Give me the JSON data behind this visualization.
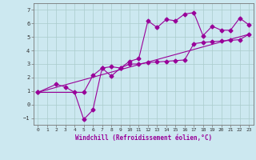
{
  "title": "",
  "xlabel": "Windchill (Refroidissement éolien,°C)",
  "bg_color": "#cce8f0",
  "line_color": "#990099",
  "grid_color": "#aacccc",
  "xlim": [
    -0.5,
    23.5
  ],
  "ylim": [
    -1.5,
    7.5
  ],
  "xticks": [
    0,
    1,
    2,
    3,
    4,
    5,
    6,
    7,
    8,
    9,
    10,
    11,
    12,
    13,
    14,
    15,
    16,
    17,
    18,
    19,
    20,
    21,
    22,
    23
  ],
  "yticks": [
    -1,
    0,
    1,
    2,
    3,
    4,
    5,
    6,
    7
  ],
  "line1_x": [
    0,
    2,
    3,
    4,
    5,
    6,
    7,
    8,
    9,
    10,
    11,
    12,
    13,
    14,
    15,
    16,
    17,
    18,
    19,
    20,
    21,
    22,
    23
  ],
  "line1_y": [
    0.9,
    1.5,
    1.3,
    0.9,
    -1.1,
    -0.4,
    2.7,
    2.8,
    2.7,
    3.2,
    3.4,
    6.2,
    5.7,
    6.3,
    6.2,
    6.7,
    6.8,
    5.1,
    5.8,
    5.5,
    5.5,
    6.4,
    5.9
  ],
  "line2_x": [
    0,
    5,
    6,
    7,
    8,
    9,
    10,
    11,
    12,
    13,
    14,
    15,
    16,
    17,
    18,
    19,
    20,
    21,
    22,
    23
  ],
  "line2_y": [
    0.9,
    0.9,
    2.15,
    2.7,
    2.1,
    2.7,
    3.0,
    3.0,
    3.1,
    3.15,
    3.2,
    3.25,
    3.3,
    4.5,
    4.6,
    4.65,
    4.7,
    4.75,
    4.8,
    5.2
  ],
  "line3_x": [
    0,
    23
  ],
  "line3_y": [
    0.9,
    5.2
  ],
  "markersize": 2.5,
  "linewidth": 0.8
}
